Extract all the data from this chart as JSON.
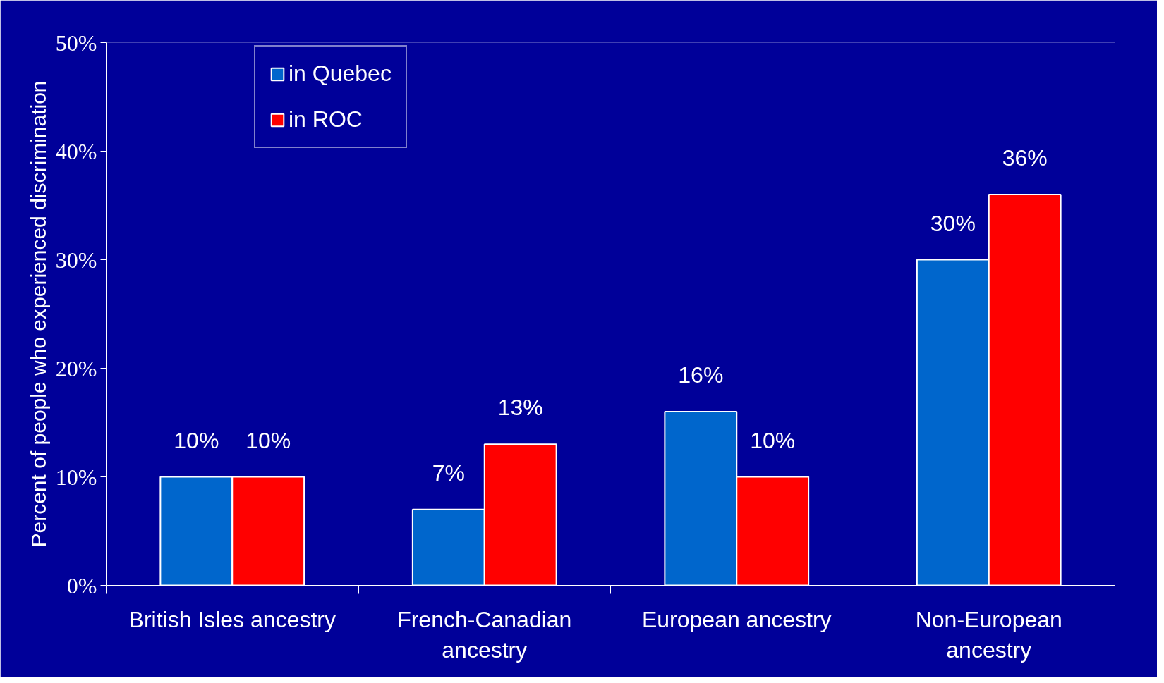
{
  "chart_data": {
    "type": "bar",
    "ylabel": "Percent of people who experienced discrimination",
    "categories": [
      "British Isles ancestry",
      "French-Canadian\nancestry",
      "European ancestry",
      "Non-European\nancestry"
    ],
    "series": [
      {
        "name": "in Quebec",
        "color": "#0066cc",
        "values": [
          10,
          7,
          16,
          30
        ],
        "value_labels": [
          "10%",
          "7%",
          "16%",
          "30%"
        ]
      },
      {
        "name": "in ROC",
        "color": "#ff0000",
        "values": [
          10,
          13,
          10,
          36
        ],
        "value_labels": [
          "10%",
          "13%",
          "10%",
          "36%"
        ]
      }
    ],
    "ylim": [
      0,
      50
    ],
    "yticks": [
      {
        "value": 0,
        "label": "0%"
      },
      {
        "value": 10,
        "label": "10%"
      },
      {
        "value": 20,
        "label": "20%"
      },
      {
        "value": 30,
        "label": "30%"
      },
      {
        "value": 40,
        "label": "40%"
      },
      {
        "value": 50,
        "label": "50%"
      }
    ],
    "grid": false,
    "legend": "top left"
  }
}
